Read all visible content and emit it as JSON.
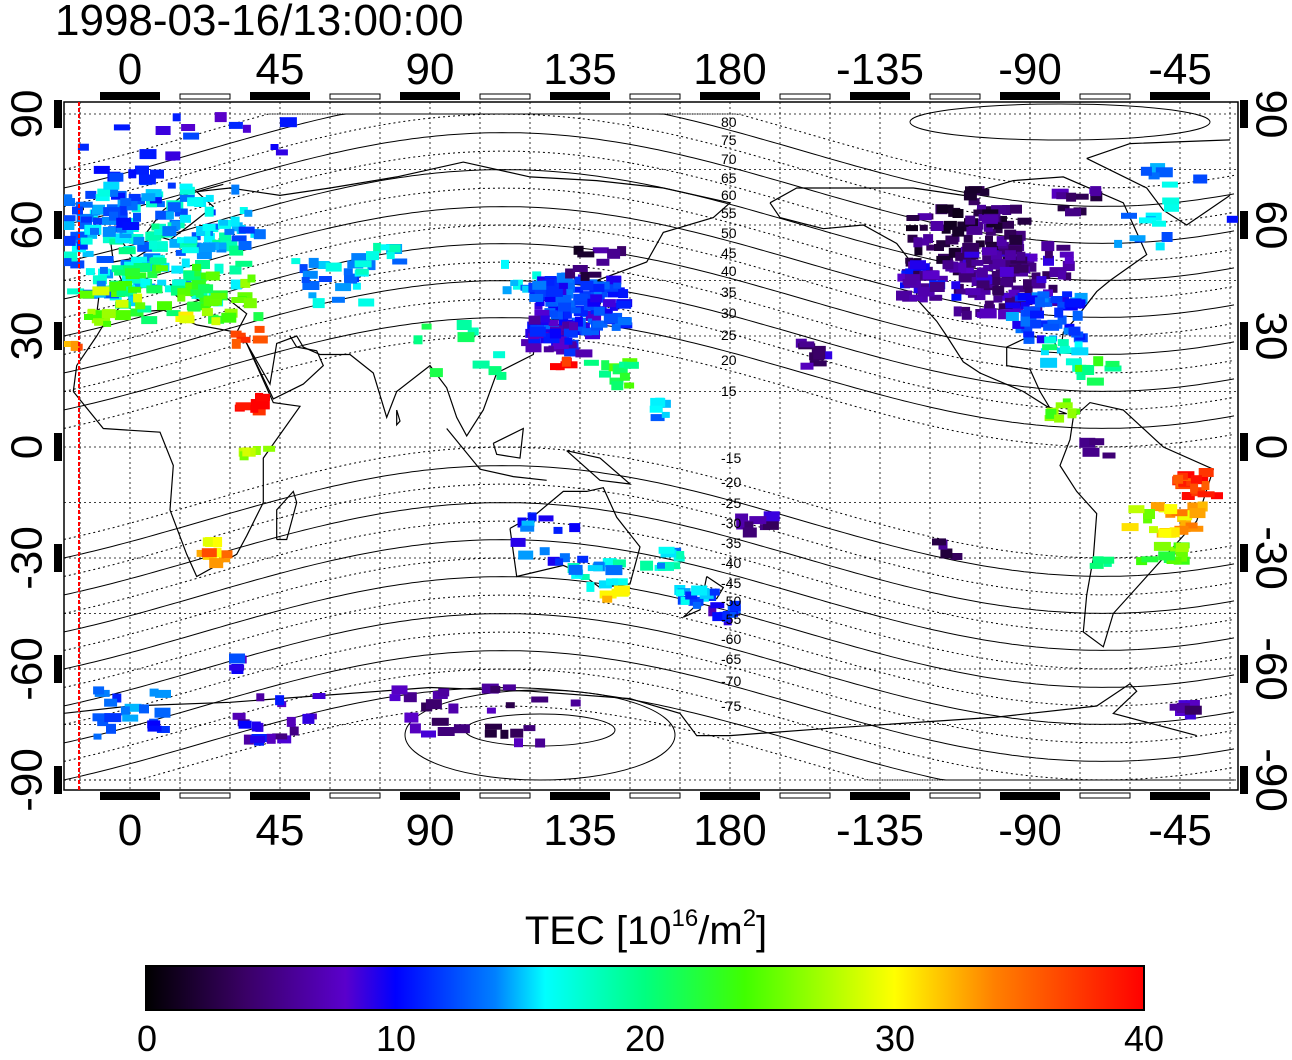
{
  "title": "1998-03-16/13:00:00",
  "map": {
    "projection": "equirectangular",
    "center_lon": 180,
    "lon_ticks": [
      "0",
      "45",
      "90",
      "135",
      "180",
      "-135",
      "-90",
      "-45"
    ],
    "lat_ticks": [
      "90",
      "60",
      "30",
      "0",
      "-30",
      "-60",
      "-90"
    ],
    "contour_labels": [
      "80",
      "75",
      "70",
      "65",
      "60",
      "55",
      "50",
      "45",
      "40",
      "35",
      "30",
      "25",
      "20",
      "15",
      "-15",
      "-20",
      "-25",
      "-30",
      "-35",
      "-40",
      "-45",
      "-50",
      "-55",
      "-60",
      "-65",
      "-70",
      "-75"
    ],
    "terminator_color": "#ff0000",
    "gridlines": "dotted"
  },
  "colorbar": {
    "label_main": "TEC  [10",
    "label_exp1": "16",
    "label_mid": "/m",
    "label_exp2": "2",
    "label_end": "]",
    "min": 0,
    "max": 40,
    "ticks": [
      "0",
      "10",
      "20",
      "30",
      "40"
    ],
    "colormap": [
      "#000000",
      "#3a0066",
      "#5a00cc",
      "#0000ff",
      "#0080ff",
      "#00ffff",
      "#00ff80",
      "#00ff00",
      "#80ff00",
      "#ffff00",
      "#ff8000",
      "#ff0000"
    ]
  }
}
